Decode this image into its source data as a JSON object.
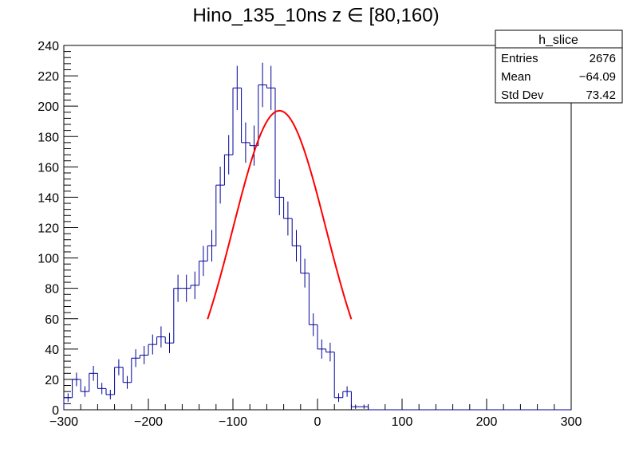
{
  "chart_data": {
    "type": "histogram",
    "title": "Hino_135_10ns z  ∈ [80,160)",
    "xlabel": "",
    "ylabel": "",
    "xlim": [
      -300,
      300
    ],
    "ylim": [
      0,
      240
    ],
    "x_ticks": [
      -300,
      -200,
      -100,
      0,
      100,
      200,
      300
    ],
    "x_tick_labels": [
      "−300",
      "−200",
      "−100",
      "0",
      "100",
      "200",
      "300"
    ],
    "y_ticks": [
      0,
      20,
      40,
      60,
      80,
      100,
      120,
      140,
      160,
      180,
      200,
      220,
      240
    ],
    "y_tick_labels": [
      "0",
      "20",
      "40",
      "60",
      "80",
      "100",
      "120",
      "140",
      "160",
      "180",
      "200",
      "220",
      "240"
    ],
    "grid": false,
    "series": [
      {
        "type": "histogram",
        "bin_width": 10,
        "bin_low_edges": [
          -300,
          -290,
          -280,
          -270,
          -260,
          -250,
          -240,
          -230,
          -220,
          -210,
          -200,
          -190,
          -180,
          -170,
          -160,
          -150,
          -140,
          -130,
          -120,
          -110,
          -100,
          -90,
          -80,
          -70,
          -60,
          -50,
          -40,
          -30,
          -20,
          -10,
          0,
          10,
          20,
          30,
          40,
          50,
          60,
          70,
          80,
          90,
          100,
          110,
          120,
          130,
          140,
          150,
          160,
          170,
          180,
          190,
          200,
          210,
          220,
          230,
          240,
          250,
          260,
          270,
          280,
          290
        ],
        "values": [
          8,
          20,
          12,
          24,
          14,
          10,
          28,
          18,
          34,
          36,
          43,
          48,
          44,
          80,
          80,
          82,
          98,
          108,
          148,
          168,
          212,
          176,
          174,
          214,
          212,
          140,
          126,
          108,
          90,
          56,
          40,
          38,
          8,
          12,
          2,
          2,
          0,
          0,
          0,
          0,
          0,
          0,
          0,
          0,
          0,
          0,
          0,
          0,
          0,
          0,
          0,
          0,
          0,
          0,
          0,
          0,
          0,
          0,
          0,
          0
        ],
        "color": "#000099"
      },
      {
        "type": "fit-curve",
        "model": "gaussian",
        "range": [
          -130,
          40
        ],
        "amplitude": 197,
        "mean": -45,
        "sigma": 55,
        "color": "#ff0000"
      }
    ],
    "stats_box": {
      "title": "h_slice",
      "position": "top-right",
      "rows": [
        {
          "label": "Entries",
          "value": "2676"
        },
        {
          "label": "Mean",
          "value": "−64.09"
        },
        {
          "label": "Std Dev",
          "value": "73.42"
        }
      ]
    }
  }
}
